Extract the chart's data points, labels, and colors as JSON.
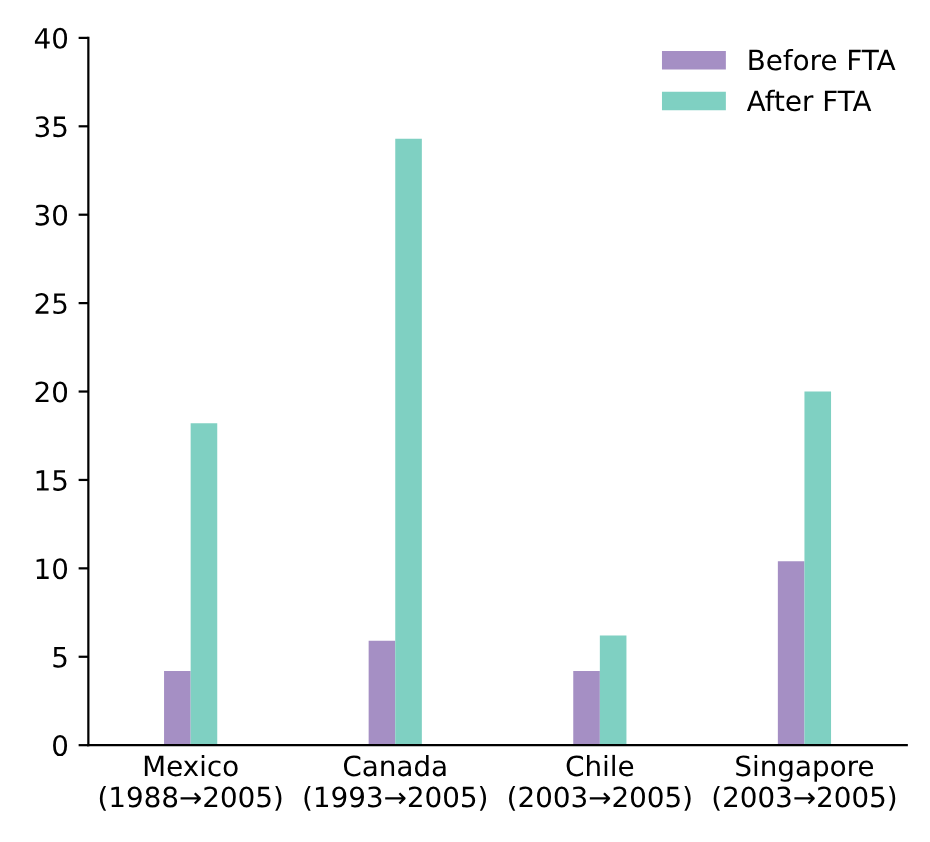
{
  "chart_data": {
    "type": "bar",
    "categories": [
      "Mexico\n(1988→2005)",
      "Canada\n(1993→2005)",
      "Chile\n(2003→2005)",
      "Singapore\n(2003→2005)"
    ],
    "series": [
      {
        "name": "Before FTA",
        "color": "#a58fc4",
        "values": [
          4.2,
          5.9,
          4.2,
          10.4
        ]
      },
      {
        "name": "After FTA",
        "color": "#7fd0c2",
        "values": [
          18.2,
          34.3,
          6.2,
          20.0
        ]
      }
    ],
    "ylim": [
      0,
      40
    ],
    "yticks": [
      0,
      5,
      10,
      15,
      20,
      25,
      30,
      35,
      40
    ],
    "grid": false,
    "legend": "top right"
  }
}
